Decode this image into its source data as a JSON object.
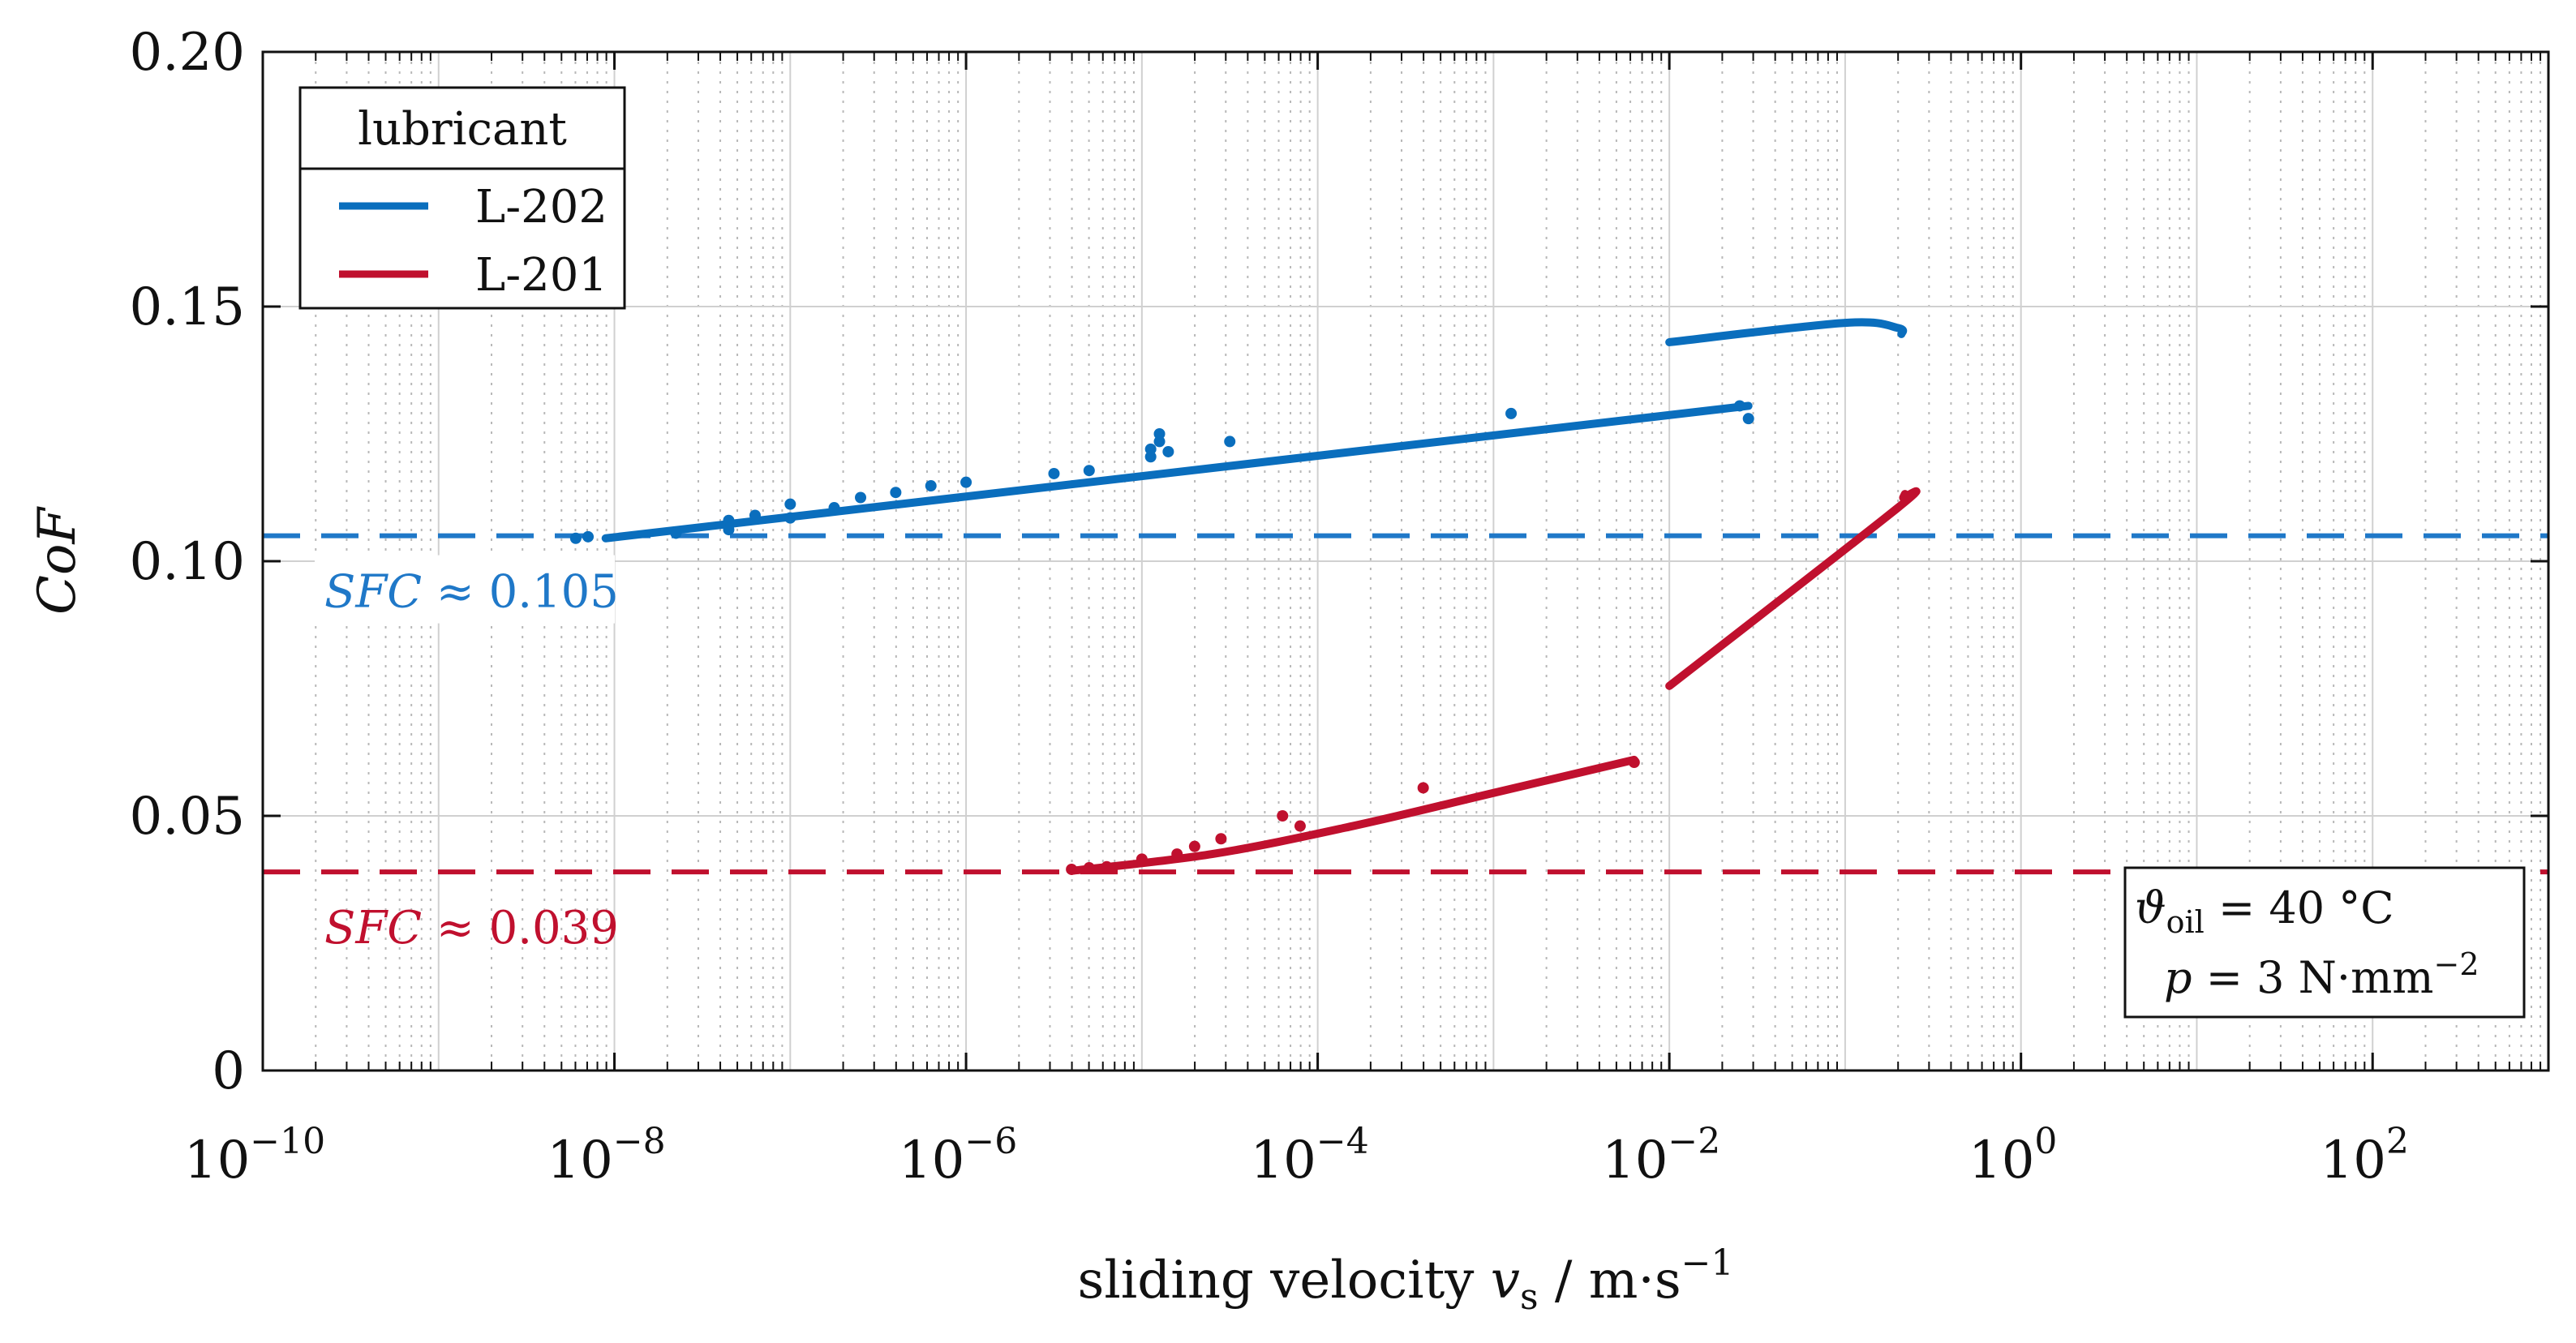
{
  "chart_data": {
    "type": "line",
    "title": "",
    "xscale": "log",
    "xlim_exp": [
      -10,
      3
    ],
    "ylim": [
      0,
      0.2
    ],
    "x_ticks": [
      {
        "base": "10",
        "exp": "−10",
        "value": -10
      },
      {
        "base": "10",
        "exp": "−8",
        "value": -8
      },
      {
        "base": "10",
        "exp": "−6",
        "value": -6
      },
      {
        "base": "10",
        "exp": "−4",
        "value": -4
      },
      {
        "base": "10",
        "exp": "−2",
        "value": -2
      },
      {
        "base": "10",
        "exp": "0",
        "value": 0
      },
      {
        "base": "10",
        "exp": "2",
        "value": 2
      }
    ],
    "y_ticks": [
      {
        "label": "0",
        "value": 0
      },
      {
        "label": "0.05",
        "value": 0.05
      },
      {
        "label": "0.10",
        "value": 0.1
      },
      {
        "label": "0.15",
        "value": 0.15
      },
      {
        "label": "0.20",
        "value": 0.2
      }
    ],
    "xlabel": {
      "text": "sliding velocity ",
      "var": "v",
      "sub": "s",
      "unit": " / m·s",
      "sup": "−1"
    },
    "ylabel": "CoF",
    "grid": true,
    "legend": {
      "title": "lubricant",
      "position": "top-left",
      "entries": [
        {
          "name": "L-202",
          "color": "#0a6ebd"
        },
        {
          "name": "L-201",
          "color": "#c0102e"
        }
      ]
    },
    "series": [
      {
        "name": "L-202",
        "color": "#0a6ebd",
        "fit_low": [
          [
            -8.05,
            0.1045
          ],
          [
            -1.55,
            0.1305
          ]
        ],
        "fit_high": [
          [
            -2.0,
            0.143
          ],
          [
            -1.0,
            0.1468
          ],
          [
            -0.7,
            0.1458
          ],
          [
            -0.68,
            0.1446
          ]
        ],
        "points": [
          [
            -8.22,
            0.1045
          ],
          [
            -8.15,
            0.1048
          ],
          [
            -7.65,
            0.1055
          ],
          [
            -7.35,
            0.1062
          ],
          [
            -7.35,
            0.108
          ],
          [
            -7.2,
            0.109
          ],
          [
            -7.0,
            0.1085
          ],
          [
            -7.0,
            0.1112
          ],
          [
            -6.75,
            0.1105
          ],
          [
            -6.6,
            0.1125
          ],
          [
            -6.4,
            0.1135
          ],
          [
            -6.2,
            0.1148
          ],
          [
            -6.0,
            0.1155
          ],
          [
            -5.5,
            0.1172
          ],
          [
            -5.3,
            0.1178
          ],
          [
            -4.95,
            0.1205
          ],
          [
            -4.95,
            0.122
          ],
          [
            -4.9,
            0.1235
          ],
          [
            -4.9,
            0.125
          ],
          [
            -4.85,
            0.1215
          ],
          [
            -4.5,
            0.1235
          ],
          [
            -2.9,
            0.129
          ],
          [
            -1.6,
            0.1305
          ],
          [
            -1.55,
            0.128
          ]
        ]
      },
      {
        "name": "L-201",
        "color": "#c0102e",
        "fit_low": [
          [
            -5.4,
            0.0392
          ],
          [
            -4.6,
            0.0425
          ],
          [
            -3.8,
            0.048
          ],
          [
            -3.0,
            0.0545
          ],
          [
            -2.2,
            0.061
          ]
        ],
        "fit_high": [
          [
            -2.0,
            0.0755
          ],
          [
            -0.7,
            0.1105
          ],
          [
            -0.67,
            0.1125
          ],
          [
            -0.66,
            0.1132
          ]
        ],
        "points": [
          [
            -5.4,
            0.0395
          ],
          [
            -5.3,
            0.0398
          ],
          [
            -5.2,
            0.04
          ],
          [
            -5.0,
            0.0415
          ],
          [
            -4.8,
            0.0425
          ],
          [
            -4.7,
            0.044
          ],
          [
            -4.55,
            0.0455
          ],
          [
            -4.2,
            0.05
          ],
          [
            -4.1,
            0.048
          ],
          [
            -3.4,
            0.0555
          ],
          [
            -2.2,
            0.0605
          ]
        ]
      }
    ],
    "reference_lines": [
      {
        "name": "SFC L-202",
        "y": 0.105,
        "color": "#1f78c8",
        "label": "SFC ≈ 0.105"
      },
      {
        "name": "SFC L-201",
        "y": 0.039,
        "color": "#c0102e",
        "label": "SFC ≈ 0.039"
      }
    ],
    "annotations": {
      "sfc_blue": {
        "italic": "SFC",
        "rest": " ≈ 0.105"
      },
      "sfc_red": {
        "italic": "SFC",
        "rest": " ≈ 0.039"
      }
    },
    "conditions": {
      "line1": {
        "sym": "ϑ",
        "sub": "oil",
        "rest": " = 40 °C"
      },
      "line2": {
        "var": "p",
        "rest": " = 3 N·mm",
        "sup": "−2"
      }
    }
  }
}
